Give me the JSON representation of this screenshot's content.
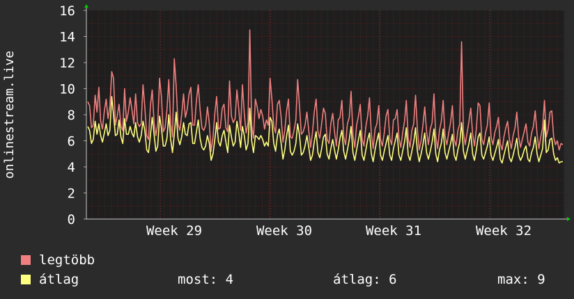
{
  "chart_data": {
    "type": "line",
    "ylabel": "onlinestream.live",
    "ylim": [
      0,
      16
    ],
    "yticks": [
      0,
      2,
      4,
      6,
      8,
      10,
      12,
      14,
      16
    ],
    "x_tick_labels": [
      "Week 29",
      "Week 30",
      "Week 31",
      "Week 32"
    ],
    "grid": true,
    "colors": {
      "background": "#2b2b2b",
      "plot": "#1e1e1e",
      "grid": "#5a2020",
      "axis": "#ffffff",
      "arrow": "#00cc00"
    },
    "series": [
      {
        "name": "legtöbb",
        "color": "#f08080",
        "values": [
          9,
          8.7,
          7,
          7.2,
          9.5,
          8.2,
          10.1,
          7.5,
          6.9,
          8.3,
          9.2,
          7.7,
          8.6,
          11.3,
          10.8,
          7.2,
          7.9,
          8.8,
          7.1,
          6.8,
          10,
          7.5,
          8.2,
          9.3,
          8.4,
          7.3,
          9.6,
          7.4,
          7.1,
          7.3,
          10.3,
          8.6,
          6.4,
          6.1,
          8.7,
          9.9,
          7.4,
          6.4,
          7.3,
          10.8,
          9.4,
          6.7,
          7,
          8.4,
          10.7,
          7.3,
          6.3,
          12.3,
          10.2,
          7.3,
          6.8,
          8,
          9.6,
          7.8,
          8.4,
          9.6,
          10.1,
          7.2,
          7.2,
          9.1,
          10.3,
          8.4,
          7,
          6.8,
          7.2,
          8.6,
          7.3,
          5.2,
          6.3,
          8.1,
          9.4,
          6.9,
          7,
          8.5,
          8.8,
          7,
          6.7,
          10.6,
          7.9,
          7.4,
          7.7,
          9.9,
          8.4,
          6.8,
          10.3,
          8.1,
          6.6,
          7.4,
          14.5,
          7.2,
          6.2,
          9.2,
          8.6,
          7.7,
          8.4,
          7.9,
          6.9,
          7.6,
          7.2,
          10.8,
          9.2,
          7.1,
          6.6,
          8.8,
          9.1,
          7.8,
          5.9,
          6.8,
          8.3,
          9.2,
          6.3,
          6.2,
          6.8,
          7.6,
          10.7,
          8.6,
          6.5,
          6.7,
          7.2,
          8.2,
          6.8,
          5.5,
          6.6,
          8.2,
          9.2,
          6.7,
          6.2,
          7.3,
          8.5,
          8.1,
          6.1,
          5.8,
          7.3,
          8.1,
          6.7,
          5.6,
          7.6,
          7.8,
          9.1,
          6.3,
          5.7,
          7.3,
          7.8,
          9.8,
          6.4,
          5.5,
          7.2,
          7.9,
          8.8,
          6.1,
          5.6,
          7.1,
          7.9,
          9.3,
          6.5,
          5.4,
          6.9,
          7.3,
          8.7,
          6.1,
          5.6,
          6.6,
          7.9,
          8.4,
          6.2,
          5.7,
          7.6,
          7.7,
          8.4,
          6.2,
          5.5,
          6.6,
          7.5,
          9.1,
          6.2,
          5.5,
          6.8,
          7.3,
          9.5,
          6.9,
          5.3,
          6,
          7.2,
          8.6,
          6.7,
          5.7,
          6.9,
          7.4,
          9.6,
          6.3,
          5.4,
          6.8,
          7.5,
          9.1,
          6.4,
          5.7,
          6.6,
          7.4,
          8.7,
          6.1,
          5.6,
          6.8,
          7.3,
          13.6,
          6.6,
          5.7,
          6.6,
          7.5,
          8.5,
          6.5,
          5.6,
          6.9,
          8.9,
          8.7,
          6.1,
          5.7,
          6.6,
          7.2,
          8.9,
          6.3,
          5.7,
          6.6,
          7.1,
          7.8,
          5.8,
          5.3,
          6.3,
          7,
          7.5,
          6.1,
          5.4,
          6.4,
          7,
          8.2,
          6.3,
          5.5,
          6.1,
          6.7,
          7.3,
          5.9,
          5.6,
          6.6,
          7.1,
          8.3,
          6.5,
          5.4,
          6.3,
          7,
          9.1,
          6.3,
          6.9,
          8.2,
          8.3,
          6.3,
          5.7,
          6,
          5.3,
          5.8,
          5.7
        ]
      },
      {
        "name": "átlag",
        "color": "#ffff80",
        "values": [
          7.1,
          6.8,
          5.8,
          6.1,
          7.5,
          6.5,
          7.3,
          6.4,
          5.9,
          6.6,
          7.3,
          6.4,
          6.8,
          9.4,
          8,
          6.4,
          6.5,
          7.6,
          6.3,
          5.8,
          7.7,
          6.5,
          6.5,
          7.1,
          6.6,
          6.3,
          7.4,
          6.3,
          5.9,
          6.4,
          7.5,
          6.8,
          5.3,
          5.1,
          6.4,
          7.8,
          6.5,
          5.2,
          5.6,
          7.9,
          7,
          5.6,
          5.6,
          6.2,
          8,
          6.1,
          5.1,
          6.5,
          8.2,
          6.2,
          5.7,
          6.3,
          7.4,
          6.5,
          6.4,
          7.3,
          7.4,
          5.8,
          5.8,
          6.7,
          7.6,
          6.2,
          5.5,
          5.3,
          5.6,
          6.4,
          5.8,
          4.5,
          5,
          6.1,
          7.4,
          5.9,
          5.6,
          6.4,
          6.8,
          5.9,
          5.1,
          7.2,
          6.3,
          5.6,
          5.9,
          7.5,
          6.6,
          5.5,
          7.1,
          6.4,
          5.3,
          5.8,
          8.5,
          6,
          5.1,
          6.4,
          6.3,
          6.1,
          6.4,
          6.1,
          5.6,
          5.9,
          5.6,
          7.8,
          7.5,
          5.8,
          5.2,
          6.4,
          6.9,
          5.8,
          4.6,
          5.3,
          6.4,
          7.2,
          5.2,
          4.9,
          5.2,
          5.8,
          7.3,
          6.4,
          4.9,
          5.1,
          5.6,
          6.4,
          5.5,
          4.5,
          4.9,
          5.9,
          6.7,
          5.1,
          4.7,
          5.4,
          6.3,
          6.5,
          5,
          4.6,
          5.4,
          6.1,
          5.3,
          4.6,
          5.3,
          6.2,
          6.8,
          5.2,
          4.6,
          5.3,
          6.1,
          7.1,
          5.1,
          4.5,
          5.3,
          6.1,
          6.8,
          4.9,
          4.5,
          5.3,
          6.1,
          6.6,
          5,
          4.4,
          5.3,
          6,
          6.6,
          4.9,
          4.5,
          5.2,
          5.8,
          6.4,
          4.9,
          4.5,
          5.4,
          6,
          6.6,
          4.9,
          4.5,
          5.2,
          5.9,
          7,
          4.9,
          4.5,
          5.2,
          5.9,
          7,
          5.2,
          4.4,
          5,
          5.7,
          6.6,
          5.1,
          4.6,
          5.2,
          5.9,
          6.9,
          5,
          4.4,
          5.3,
          5.8,
          6.9,
          5.1,
          4.6,
          5.2,
          5.8,
          6.5,
          4.9,
          4.5,
          5.3,
          5.9,
          7.4,
          5.2,
          4.6,
          5.2,
          5.8,
          6.6,
          5,
          4.5,
          5.3,
          6.3,
          6.6,
          4.9,
          4.6,
          5.1,
          5.6,
          6.3,
          4.9,
          4.5,
          5,
          5.5,
          6.1,
          4.6,
          4.3,
          4.9,
          5.5,
          6,
          4.7,
          4.4,
          4.9,
          5.5,
          6.2,
          4.9,
          4.5,
          4.8,
          5.3,
          5.6,
          4.6,
          4.4,
          5.1,
          5.5,
          6.3,
          5,
          4.4,
          4.9,
          5.4,
          7.6,
          5.1,
          5.3,
          6.1,
          6.2,
          5,
          4.5,
          4.7,
          4.3,
          4.4,
          4.4
        ]
      }
    ]
  },
  "legend": {
    "max_label": "legtöbb",
    "avg_label": "átlag",
    "current": "most: 4",
    "average": "átlag: 6",
    "maximum": "max: 9"
  }
}
